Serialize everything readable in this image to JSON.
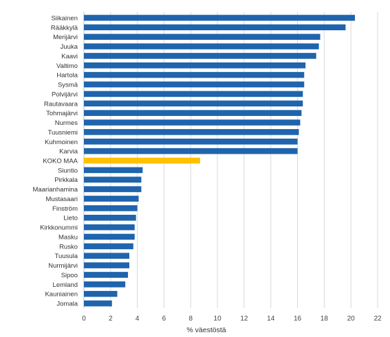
{
  "chart_data": {
    "type": "bar",
    "orientation": "horizontal",
    "categories": [
      "Siikainen",
      "Rääkkylä",
      "Merijärvi",
      "Juuka",
      "Kaavi",
      "Valtimo",
      "Hartola",
      "Sysmä",
      "Polvijärvi",
      "Rautavaara",
      "Tohmajärvi",
      "Nurmes",
      "Tuusniemi",
      "Kuhmoinen",
      "Karvia",
      "KOKO MAA",
      "Siuntio",
      "Pirkkala",
      "Maarianhamina",
      "Mustasaari",
      "Finström",
      "Lieto",
      "Kirkkonummi",
      "Masku",
      "Rusko",
      "Tuusula",
      "Nurmijärvi",
      "Sipoo",
      "Lemland",
      "Kauniainen",
      "Jomala"
    ],
    "values": [
      20.3,
      19.6,
      17.7,
      17.6,
      17.4,
      16.6,
      16.5,
      16.5,
      16.4,
      16.4,
      16.3,
      16.2,
      16.1,
      16.0,
      16.0,
      8.7,
      4.4,
      4.3,
      4.3,
      4.1,
      4.0,
      3.9,
      3.8,
      3.8,
      3.7,
      3.4,
      3.4,
      3.3,
      3.1,
      2.5,
      2.1
    ],
    "highlight": "KOKO MAA",
    "colors": {
      "bar": "#1f64ad",
      "highlight": "#ffc000"
    },
    "xlabel": "% väestöstä",
    "xlim": [
      0,
      22
    ],
    "xticks": [
      0,
      2,
      4,
      6,
      8,
      10,
      12,
      14,
      16,
      18,
      20,
      22
    ],
    "grid": true
  }
}
